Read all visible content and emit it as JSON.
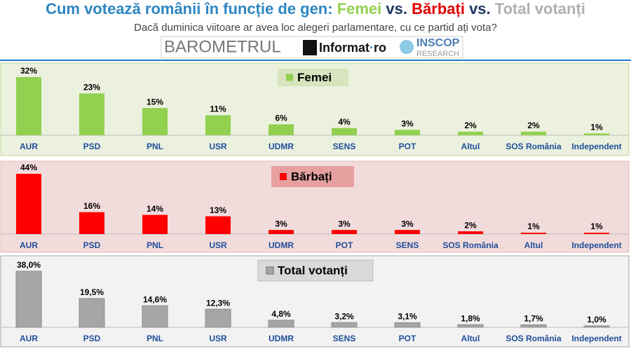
{
  "header": {
    "title_parts": [
      "Cum votează românii în funcție de gen:",
      "Femei",
      "vs.",
      "Bărbați",
      "vs.",
      "Total votanți"
    ],
    "subtitle": "Dacă duminica viitoare ar avea loc alegeri parlamentare, cu ce partid ați vota?",
    "logos": {
      "barometrul": "BAROMETRUL",
      "informat": "Informat",
      "ro": "ro",
      "inscop": "INSCOP",
      "research": "RESEARCH"
    }
  },
  "chart_data": [
    {
      "type": "bar",
      "categories": [
        "AUR",
        "PSD",
        "PNL",
        "USR",
        "UDMR",
        "SENS",
        "POT",
        "Altul",
        "SOS România",
        "Independent"
      ],
      "series": [
        {
          "name": "Femei",
          "color": "#92d050",
          "values": [
            32,
            23,
            15,
            11,
            6,
            4,
            3,
            2,
            2,
            1
          ],
          "value_labels": [
            "32%",
            "23%",
            "15%",
            "11%",
            "6%",
            "4%",
            "3%",
            "2%",
            "2%",
            "1%"
          ]
        }
      ]
    },
    {
      "type": "bar",
      "categories": [
        "AUR",
        "PSD",
        "PNL",
        "USR",
        "UDMR",
        "POT",
        "SENS",
        "SOS România",
        "Altul",
        "Independent"
      ],
      "series": [
        {
          "name": "Bărbați",
          "color": "#ff0000",
          "values": [
            44,
            16,
            14,
            13,
            3,
            3,
            3,
            2,
            1,
            1
          ],
          "value_labels": [
            "44%",
            "16%",
            "14%",
            "13%",
            "3%",
            "3%",
            "3%",
            "2%",
            "1%",
            "1%"
          ]
        }
      ]
    },
    {
      "type": "bar",
      "categories": [
        "AUR",
        "PSD",
        "PNL",
        "USR",
        "UDMR",
        "SENS",
        "POT",
        "Altul",
        "SOS România",
        "Independent"
      ],
      "series": [
        {
          "name": "Total votanți",
          "color": "#a6a6a6",
          "values": [
            38.0,
            19.5,
            14.6,
            12.3,
            4.8,
            3.2,
            3.1,
            1.8,
            1.7,
            1.0
          ],
          "value_labels": [
            "38,0%",
            "19,5%",
            "14,6%",
            "12,3%",
            "4,8%",
            "3,2%",
            "3,1%",
            "1,8%",
            "1,7%",
            "1,0%"
          ]
        }
      ]
    }
  ]
}
